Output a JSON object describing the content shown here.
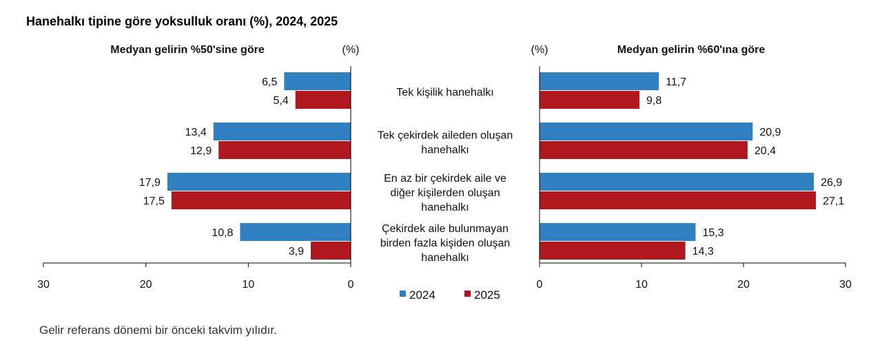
{
  "title": "Hanehalkı tipine göre yoksulluk oranı (%), 2024, 2025",
  "footnote": "Gelir referans dönemi bir önceki takvim yılıdır.",
  "colors": {
    "2024": "#2F7FC1",
    "2025": "#B0161E"
  },
  "chart_data": [
    {
      "type": "bar",
      "orientation": "horizontal",
      "direction": "left",
      "title": "Medyan gelirin %50'sine göre",
      "unit": "(%)",
      "categories": [
        "Tek kişilik hanehalkı",
        "Tek çekirdek aileden oluşan hanehalkı",
        "En az bir çekirdek aile ve diğer kişilerden oluşan hanehalkı",
        "Çekirdek aile bulunmayan birden fazla kişiden oluşan hanehalkı"
      ],
      "series": [
        {
          "name": "2024",
          "values": [
            6.5,
            13.4,
            17.9,
            10.8
          ],
          "labels": [
            "6,5",
            "13,4",
            "17,9",
            "10,8"
          ]
        },
        {
          "name": "2025",
          "values": [
            5.4,
            12.9,
            17.5,
            3.9
          ],
          "labels": [
            "5,4",
            "12,9",
            "17,5",
            "3,9"
          ]
        }
      ],
      "xlim": [
        0,
        30
      ],
      "ticks": [
        "30",
        "20",
        "10",
        "0"
      ]
    },
    {
      "type": "bar",
      "orientation": "horizontal",
      "direction": "right",
      "title": "Medyan gelirin %60'ına göre",
      "unit": "(%)",
      "categories": [
        "Tek kişilik hanehalkı",
        "Tek çekirdek aileden oluşan hanehalkı",
        "En az bir çekirdek aile ve diğer kişilerden oluşan hanehalkı",
        "Çekirdek aile bulunmayan birden fazla kişiden oluşan hanehalkı"
      ],
      "series": [
        {
          "name": "2024",
          "values": [
            11.7,
            20.9,
            26.9,
            15.3
          ],
          "labels": [
            "11,7",
            "20,9",
            "26,9",
            "15,3"
          ]
        },
        {
          "name": "2025",
          "values": [
            9.8,
            20.4,
            27.1,
            14.3
          ],
          "labels": [
            "9,8",
            "20,4",
            "27,1",
            "14,3"
          ]
        }
      ],
      "xlim": [
        0,
        30
      ],
      "ticks": [
        "0",
        "10",
        "20",
        "30"
      ]
    }
  ],
  "category_lines": [
    [
      "Tek kişilik hanehalkı"
    ],
    [
      "Tek çekirdek aileden oluşan",
      "hanehalkı"
    ],
    [
      "En az bir çekirdek aile ve",
      "diğer kişilerden oluşan",
      "hanehalkı"
    ],
    [
      "Çekirdek aile bulunmayan",
      "birden fazla kişiden oluşan",
      "hanehalkı"
    ]
  ],
  "legend": [
    "2024",
    "2025"
  ]
}
